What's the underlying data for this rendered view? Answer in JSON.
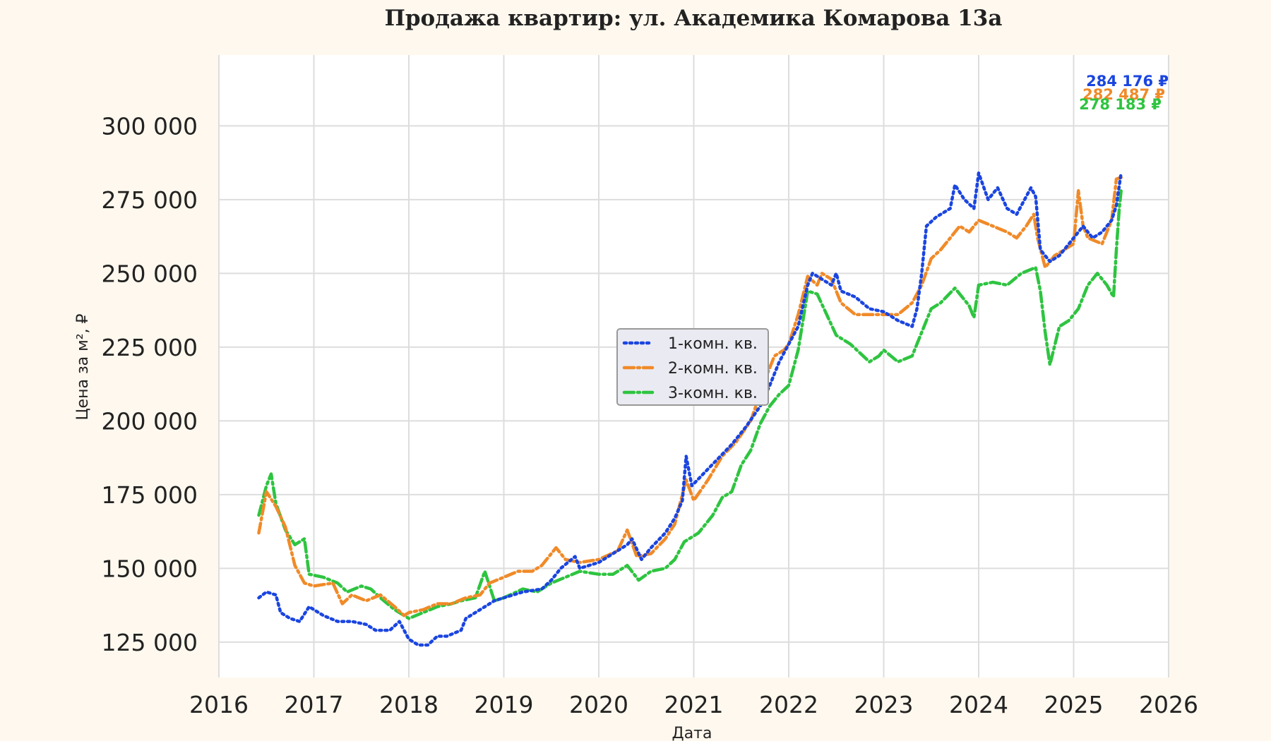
{
  "chart_data": {
    "type": "line",
    "title": "Продажа квартир: ул. Академика Комарова 13а",
    "xlabel": "Дата",
    "ylabel": "Цена за м², ₽",
    "xlim": [
      2016,
      2026
    ],
    "ylim": [
      113000,
      324000
    ],
    "x_ticks": [
      "2016",
      "2017",
      "2018",
      "2019",
      "2020",
      "2021",
      "2022",
      "2023",
      "2024",
      "2025",
      "2026"
    ],
    "y_ticks": [
      125000,
      150000,
      175000,
      200000,
      225000,
      250000,
      275000,
      300000
    ],
    "y_tick_labels": [
      "125 000",
      "150 000",
      "175 000",
      "200 000",
      "225 000",
      "250 000",
      "275 000",
      "300 000"
    ],
    "grid": true,
    "legend_position": "center",
    "series": [
      {
        "name": "1-комн. кв.",
        "color": "#1a45e0",
        "style": "dotted",
        "end_label": "284 176 ₽",
        "points": [
          [
            2016.42,
            140000
          ],
          [
            2016.5,
            142000
          ],
          [
            2016.6,
            141000
          ],
          [
            2016.65,
            135000
          ],
          [
            2016.75,
            133000
          ],
          [
            2016.85,
            132000
          ],
          [
            2016.95,
            137000
          ],
          [
            2017.1,
            134000
          ],
          [
            2017.25,
            132000
          ],
          [
            2017.4,
            132000
          ],
          [
            2017.55,
            131000
          ],
          [
            2017.65,
            129000
          ],
          [
            2017.8,
            129000
          ],
          [
            2017.9,
            132000
          ],
          [
            2018.0,
            126000
          ],
          [
            2018.1,
            124000
          ],
          [
            2018.2,
            124000
          ],
          [
            2018.3,
            127000
          ],
          [
            2018.4,
            127000
          ],
          [
            2018.55,
            129000
          ],
          [
            2018.6,
            133000
          ],
          [
            2018.75,
            136000
          ],
          [
            2018.9,
            139000
          ],
          [
            2019.0,
            140000
          ],
          [
            2019.2,
            142000
          ],
          [
            2019.4,
            143000
          ],
          [
            2019.5,
            146000
          ],
          [
            2019.6,
            150000
          ],
          [
            2019.75,
            154000
          ],
          [
            2019.8,
            150000
          ],
          [
            2020.0,
            152000
          ],
          [
            2020.15,
            155000
          ],
          [
            2020.3,
            158000
          ],
          [
            2020.35,
            160000
          ],
          [
            2020.45,
            153000
          ],
          [
            2020.55,
            157000
          ],
          [
            2020.7,
            162000
          ],
          [
            2020.8,
            167000
          ],
          [
            2020.88,
            173000
          ],
          [
            2020.92,
            188000
          ],
          [
            2020.98,
            178000
          ],
          [
            2021.1,
            182000
          ],
          [
            2021.25,
            187000
          ],
          [
            2021.4,
            192000
          ],
          [
            2021.55,
            198000
          ],
          [
            2021.7,
            205000
          ],
          [
            2021.8,
            212000
          ],
          [
            2021.9,
            220000
          ],
          [
            2022.0,
            226000
          ],
          [
            2022.1,
            232000
          ],
          [
            2022.2,
            246000
          ],
          [
            2022.25,
            250000
          ],
          [
            2022.35,
            248000
          ],
          [
            2022.45,
            246000
          ],
          [
            2022.5,
            250000
          ],
          [
            2022.55,
            244000
          ],
          [
            2022.7,
            242000
          ],
          [
            2022.85,
            238000
          ],
          [
            2023.0,
            237000
          ],
          [
            2023.15,
            234000
          ],
          [
            2023.3,
            232000
          ],
          [
            2023.35,
            238000
          ],
          [
            2023.4,
            250000
          ],
          [
            2023.45,
            266000
          ],
          [
            2023.55,
            269000
          ],
          [
            2023.7,
            272000
          ],
          [
            2023.75,
            280000
          ],
          [
            2023.85,
            275000
          ],
          [
            2023.95,
            272000
          ],
          [
            2024.0,
            284000
          ],
          [
            2024.1,
            275000
          ],
          [
            2024.2,
            279000
          ],
          [
            2024.3,
            272000
          ],
          [
            2024.4,
            270000
          ],
          [
            2024.5,
            276000
          ],
          [
            2024.55,
            279000
          ],
          [
            2024.6,
            276000
          ],
          [
            2024.65,
            258000
          ],
          [
            2024.75,
            254000
          ],
          [
            2024.85,
            256000
          ],
          [
            2025.0,
            262000
          ],
          [
            2025.1,
            266000
          ],
          [
            2025.2,
            262000
          ],
          [
            2025.3,
            264000
          ],
          [
            2025.4,
            268000
          ],
          [
            2025.45,
            273000
          ],
          [
            2025.5,
            284176
          ]
        ]
      },
      {
        "name": "2-комн. кв.",
        "color": "#f08a28",
        "style": "dashdot",
        "end_label": "282 487 ₽",
        "points": [
          [
            2016.42,
            162000
          ],
          [
            2016.5,
            176000
          ],
          [
            2016.6,
            171000
          ],
          [
            2016.7,
            164000
          ],
          [
            2016.8,
            151000
          ],
          [
            2016.9,
            145000
          ],
          [
            2017.0,
            144000
          ],
          [
            2017.2,
            145000
          ],
          [
            2017.3,
            138000
          ],
          [
            2017.4,
            141000
          ],
          [
            2017.55,
            139000
          ],
          [
            2017.7,
            141000
          ],
          [
            2017.85,
            137000
          ],
          [
            2017.95,
            134000
          ],
          [
            2018.0,
            135000
          ],
          [
            2018.15,
            136000
          ],
          [
            2018.3,
            138000
          ],
          [
            2018.45,
            138000
          ],
          [
            2018.6,
            140000
          ],
          [
            2018.75,
            141000
          ],
          [
            2018.85,
            145000
          ],
          [
            2019.0,
            147000
          ],
          [
            2019.15,
            149000
          ],
          [
            2019.3,
            149000
          ],
          [
            2019.4,
            151000
          ],
          [
            2019.55,
            157000
          ],
          [
            2019.65,
            153000
          ],
          [
            2019.8,
            152000
          ],
          [
            2020.0,
            153000
          ],
          [
            2020.2,
            156000
          ],
          [
            2020.3,
            163000
          ],
          [
            2020.4,
            154000
          ],
          [
            2020.55,
            155000
          ],
          [
            2020.7,
            160000
          ],
          [
            2020.8,
            165000
          ],
          [
            2020.88,
            175000
          ],
          [
            2020.92,
            180000
          ],
          [
            2021.0,
            173000
          ],
          [
            2021.15,
            180000
          ],
          [
            2021.3,
            188000
          ],
          [
            2021.45,
            193000
          ],
          [
            2021.6,
            200000
          ],
          [
            2021.75,
            214000
          ],
          [
            2021.85,
            222000
          ],
          [
            2021.95,
            224000
          ],
          [
            2022.0,
            226000
          ],
          [
            2022.1,
            236000
          ],
          [
            2022.2,
            249000
          ],
          [
            2022.3,
            246000
          ],
          [
            2022.35,
            250000
          ],
          [
            2022.45,
            248000
          ],
          [
            2022.55,
            240000
          ],
          [
            2022.7,
            236000
          ],
          [
            2022.85,
            236000
          ],
          [
            2023.0,
            236000
          ],
          [
            2023.15,
            236000
          ],
          [
            2023.3,
            240000
          ],
          [
            2023.4,
            246000
          ],
          [
            2023.5,
            255000
          ],
          [
            2023.6,
            258000
          ],
          [
            2023.7,
            262000
          ],
          [
            2023.8,
            266000
          ],
          [
            2023.9,
            264000
          ],
          [
            2024.0,
            268000
          ],
          [
            2024.15,
            266000
          ],
          [
            2024.3,
            264000
          ],
          [
            2024.4,
            262000
          ],
          [
            2024.5,
            266000
          ],
          [
            2024.58,
            270000
          ],
          [
            2024.62,
            262000
          ],
          [
            2024.7,
            252000
          ],
          [
            2024.8,
            256000
          ],
          [
            2024.9,
            258000
          ],
          [
            2025.0,
            260000
          ],
          [
            2025.05,
            278000
          ],
          [
            2025.1,
            266000
          ],
          [
            2025.15,
            262000
          ],
          [
            2025.3,
            260000
          ],
          [
            2025.4,
            268000
          ],
          [
            2025.45,
            282000
          ],
          [
            2025.5,
            282487
          ]
        ]
      },
      {
        "name": "3-комн. кв.",
        "color": "#2ec440",
        "style": "dashdot",
        "end_label": "278 183 ₽",
        "points": [
          [
            2016.42,
            168000
          ],
          [
            2016.5,
            178000
          ],
          [
            2016.55,
            182000
          ],
          [
            2016.6,
            172000
          ],
          [
            2016.7,
            163000
          ],
          [
            2016.8,
            158000
          ],
          [
            2016.9,
            160000
          ],
          [
            2016.95,
            148000
          ],
          [
            2017.1,
            147000
          ],
          [
            2017.25,
            145000
          ],
          [
            2017.35,
            142000
          ],
          [
            2017.5,
            144000
          ],
          [
            2017.6,
            143000
          ],
          [
            2017.7,
            140000
          ],
          [
            2017.85,
            136000
          ],
          [
            2017.95,
            134000
          ],
          [
            2018.0,
            133000
          ],
          [
            2018.15,
            135000
          ],
          [
            2018.3,
            137000
          ],
          [
            2018.45,
            138000
          ],
          [
            2018.55,
            139000
          ],
          [
            2018.7,
            140000
          ],
          [
            2018.8,
            149000
          ],
          [
            2018.9,
            139000
          ],
          [
            2019.0,
            140000
          ],
          [
            2019.2,
            143000
          ],
          [
            2019.35,
            142000
          ],
          [
            2019.5,
            145000
          ],
          [
            2019.65,
            147000
          ],
          [
            2019.8,
            149000
          ],
          [
            2020.0,
            148000
          ],
          [
            2020.15,
            148000
          ],
          [
            2020.3,
            151000
          ],
          [
            2020.42,
            146000
          ],
          [
            2020.55,
            149000
          ],
          [
            2020.7,
            150000
          ],
          [
            2020.8,
            153000
          ],
          [
            2020.9,
            159000
          ],
          [
            2021.05,
            162000
          ],
          [
            2021.2,
            168000
          ],
          [
            2021.3,
            174000
          ],
          [
            2021.4,
            176000
          ],
          [
            2021.5,
            185000
          ],
          [
            2021.6,
            190000
          ],
          [
            2021.7,
            199000
          ],
          [
            2021.8,
            205000
          ],
          [
            2021.9,
            209000
          ],
          [
            2022.0,
            212000
          ],
          [
            2022.1,
            224000
          ],
          [
            2022.2,
            244000
          ],
          [
            2022.3,
            243000
          ],
          [
            2022.4,
            236000
          ],
          [
            2022.5,
            229000
          ],
          [
            2022.65,
            226000
          ],
          [
            2022.75,
            223000
          ],
          [
            2022.85,
            220000
          ],
          [
            2022.95,
            222000
          ],
          [
            2023.0,
            224000
          ],
          [
            2023.15,
            220000
          ],
          [
            2023.3,
            222000
          ],
          [
            2023.4,
            230000
          ],
          [
            2023.5,
            238000
          ],
          [
            2023.6,
            240000
          ],
          [
            2023.75,
            245000
          ],
          [
            2023.9,
            239000
          ],
          [
            2023.95,
            235000
          ],
          [
            2024.0,
            246000
          ],
          [
            2024.15,
            247000
          ],
          [
            2024.3,
            246000
          ],
          [
            2024.45,
            250000
          ],
          [
            2024.6,
            252000
          ],
          [
            2024.65,
            244000
          ],
          [
            2024.7,
            230000
          ],
          [
            2024.75,
            219000
          ],
          [
            2024.85,
            232000
          ],
          [
            2024.95,
            234000
          ],
          [
            2025.05,
            238000
          ],
          [
            2025.15,
            246000
          ],
          [
            2025.25,
            250000
          ],
          [
            2025.35,
            246000
          ],
          [
            2025.42,
            242000
          ],
          [
            2025.45,
            258000
          ],
          [
            2025.48,
            272000
          ],
          [
            2025.5,
            278183
          ]
        ]
      }
    ]
  }
}
